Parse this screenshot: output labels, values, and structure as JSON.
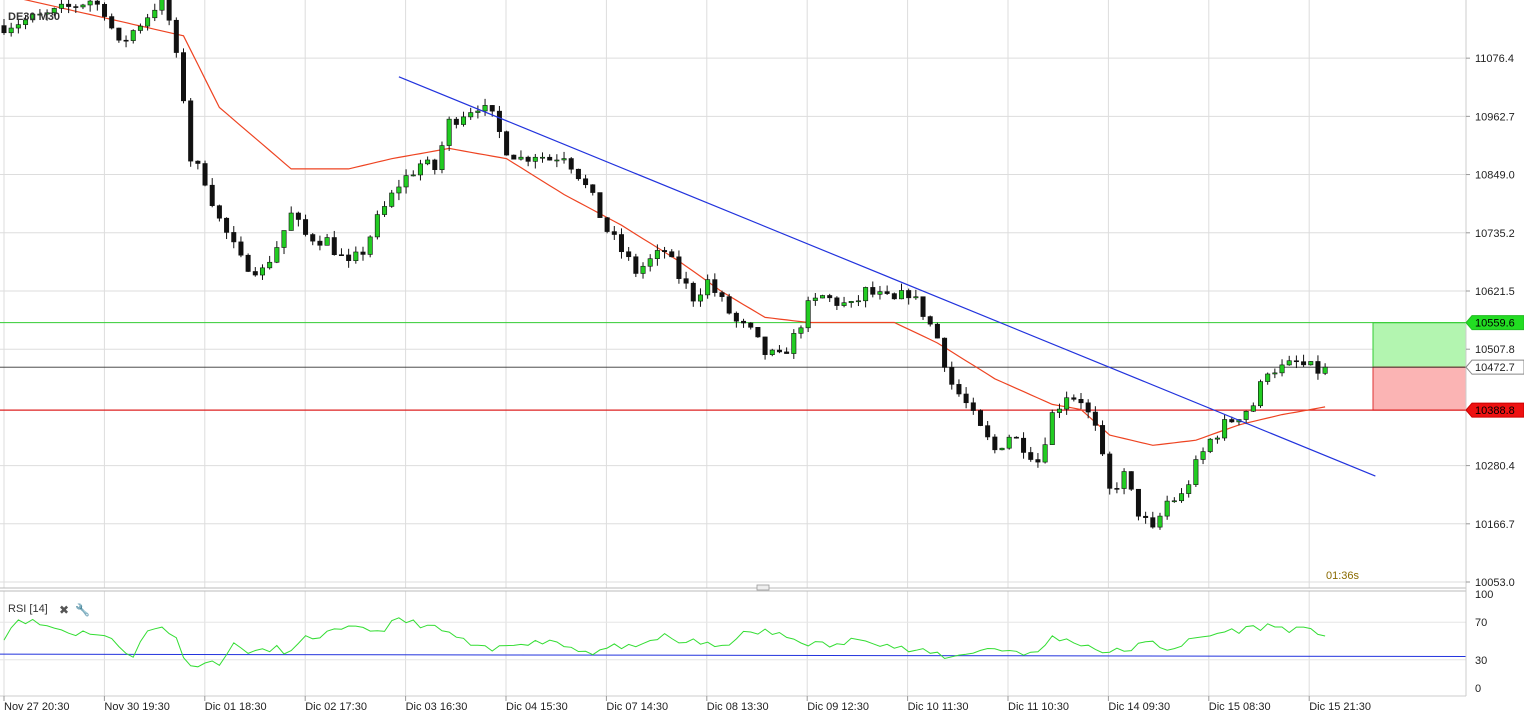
{
  "chart_data": {
    "type": "candlestick",
    "instrument": "DE30",
    "timeframe": "M30",
    "title": "DE30 M30",
    "y_ticks": [
      11076.4,
      10962.7,
      10849.0,
      10735.2,
      10621.5,
      10507.8,
      10280.4,
      10166.7,
      10053.0
    ],
    "ylim": [
      10053.0,
      11190.0
    ],
    "x_ticks": [
      "Nov 27 20:30",
      "Nov 30 19:30",
      "Dic 01 18:30",
      "Dic 02 17:30",
      "Dic 03 16:30",
      "Dic 04 15:30",
      "Dic 07 14:30",
      "Dic 08 13:30",
      "Dic 09 12:30",
      "Dic 10 11:30",
      "Dic 11 10:30",
      "Dic 14 09:30",
      "Dic 15 08:30",
      "Dic 15 21:30"
    ],
    "current_price": 10472.7,
    "take_profit": 10559.6,
    "stop_loss": 10388.8,
    "countdown": "01:36s",
    "grid": true,
    "close_path": [
      [
        0,
        11140
      ],
      [
        6,
        11160
      ],
      [
        12,
        11190
      ],
      [
        14,
        11170
      ],
      [
        16,
        11100
      ],
      [
        18,
        11130
      ],
      [
        20,
        11160
      ],
      [
        22,
        11195
      ],
      [
        23,
        11150
      ],
      [
        25,
        11000
      ],
      [
        26,
        10880
      ],
      [
        28,
        10840
      ],
      [
        30,
        10760
      ],
      [
        33,
        10680
      ],
      [
        36,
        10660
      ],
      [
        38,
        10710
      ],
      [
        40,
        10770
      ],
      [
        42,
        10730
      ],
      [
        45,
        10720
      ],
      [
        48,
        10670
      ],
      [
        50,
        10700
      ],
      [
        52,
        10760
      ],
      [
        55,
        10830
      ],
      [
        58,
        10870
      ],
      [
        60,
        10860
      ],
      [
        62,
        10950
      ],
      [
        64,
        10970
      ],
      [
        66,
        10985
      ],
      [
        68,
        10960
      ],
      [
        70,
        10900
      ],
      [
        72,
        10880
      ],
      [
        74,
        10890
      ],
      [
        76,
        10880
      ],
      [
        78,
        10890
      ],
      [
        80,
        10850
      ],
      [
        82,
        10800
      ],
      [
        84,
        10740
      ],
      [
        86,
        10700
      ],
      [
        88,
        10660
      ],
      [
        90,
        10680
      ],
      [
        92,
        10700
      ],
      [
        94,
        10650
      ],
      [
        96,
        10610
      ],
      [
        98,
        10640
      ],
      [
        100,
        10600
      ],
      [
        102,
        10560
      ],
      [
        104,
        10540
      ],
      [
        106,
        10500
      ],
      [
        108,
        10490
      ],
      [
        110,
        10530
      ],
      [
        112,
        10590
      ],
      [
        114,
        10610
      ],
      [
        116,
        10600
      ],
      [
        118,
        10590
      ],
      [
        120,
        10620
      ],
      [
        122,
        10610
      ],
      [
        124,
        10600
      ],
      [
        126,
        10620
      ],
      [
        128,
        10580
      ],
      [
        130,
        10530
      ],
      [
        132,
        10440
      ],
      [
        134,
        10400
      ],
      [
        136,
        10350
      ],
      [
        138,
        10310
      ],
      [
        140,
        10340
      ],
      [
        142,
        10320
      ],
      [
        144,
        10290
      ],
      [
        146,
        10380
      ],
      [
        148,
        10420
      ],
      [
        150,
        10410
      ],
      [
        152,
        10350
      ],
      [
        154,
        10230
      ],
      [
        156,
        10260
      ],
      [
        158,
        10190
      ],
      [
        160,
        10150
      ],
      [
        162,
        10210
      ],
      [
        164,
        10220
      ],
      [
        166,
        10280
      ],
      [
        168,
        10330
      ],
      [
        170,
        10360
      ],
      [
        172,
        10380
      ],
      [
        174,
        10400
      ],
      [
        176,
        10470
      ],
      [
        178,
        10470
      ],
      [
        180,
        10480
      ],
      [
        182,
        10470
      ],
      [
        184,
        10462
      ]
    ],
    "ma_points": [
      [
        0,
        11200
      ],
      [
        25,
        11120
      ],
      [
        30,
        10980
      ],
      [
        40,
        10860
      ],
      [
        48,
        10860
      ],
      [
        54,
        10880
      ],
      [
        62,
        10900
      ],
      [
        70,
        10880
      ],
      [
        78,
        10810
      ],
      [
        86,
        10750
      ],
      [
        94,
        10680
      ],
      [
        100,
        10620
      ],
      [
        106,
        10570
      ],
      [
        112,
        10560
      ],
      [
        118,
        10560
      ],
      [
        124,
        10560
      ],
      [
        130,
        10520
      ],
      [
        138,
        10450
      ],
      [
        146,
        10400
      ],
      [
        150,
        10390
      ],
      [
        154,
        10340
      ],
      [
        160,
        10320
      ],
      [
        166,
        10330
      ],
      [
        172,
        10360
      ],
      [
        178,
        10380
      ],
      [
        184,
        10395
      ]
    ],
    "trendline": [
      [
        55,
        11040
      ],
      [
        191,
        10260
      ]
    ],
    "rsi": {
      "label": "RSI [14]",
      "y_ticks": [
        100,
        70,
        30,
        0
      ],
      "ylim": [
        0,
        100
      ],
      "level": 35,
      "points": [
        [
          0,
          55
        ],
        [
          2,
          74
        ],
        [
          5,
          68
        ],
        [
          8,
          62
        ],
        [
          10,
          58
        ],
        [
          12,
          60
        ],
        [
          14,
          55
        ],
        [
          18,
          35
        ],
        [
          20,
          60
        ],
        [
          22,
          65
        ],
        [
          24,
          55
        ],
        [
          25,
          30
        ],
        [
          27,
          25
        ],
        [
          30,
          28
        ],
        [
          32,
          45
        ],
        [
          34,
          40
        ],
        [
          36,
          38
        ],
        [
          38,
          42
        ],
        [
          40,
          38
        ],
        [
          42,
          52
        ],
        [
          45,
          58
        ],
        [
          48,
          62
        ],
        [
          50,
          65
        ],
        [
          52,
          60
        ],
        [
          55,
          72
        ],
        [
          58,
          68
        ],
        [
          60,
          63
        ],
        [
          62,
          58
        ],
        [
          64,
          50
        ],
        [
          66,
          42
        ],
        [
          68,
          40
        ],
        [
          70,
          45
        ],
        [
          72,
          50
        ],
        [
          74,
          48
        ],
        [
          76,
          52
        ],
        [
          78,
          45
        ],
        [
          80,
          42
        ],
        [
          82,
          38
        ],
        [
          84,
          42
        ],
        [
          86,
          45
        ],
        [
          88,
          40
        ],
        [
          90,
          50
        ],
        [
          92,
          55
        ],
        [
          94,
          48
        ],
        [
          96,
          52
        ],
        [
          98,
          45
        ],
        [
          100,
          42
        ],
        [
          102,
          55
        ],
        [
          104,
          58
        ],
        [
          106,
          60
        ],
        [
          108,
          56
        ],
        [
          110,
          52
        ],
        [
          112,
          48
        ],
        [
          114,
          46
        ],
        [
          116,
          45
        ],
        [
          118,
          50
        ],
        [
          120,
          54
        ],
        [
          122,
          48
        ],
        [
          124,
          44
        ],
        [
          126,
          40
        ],
        [
          128,
          38
        ],
        [
          130,
          36
        ],
        [
          132,
          32
        ],
        [
          134,
          38
        ],
        [
          136,
          40
        ],
        [
          138,
          42
        ],
        [
          140,
          40
        ],
        [
          142,
          38
        ],
        [
          144,
          36
        ],
        [
          146,
          55
        ],
        [
          148,
          50
        ],
        [
          150,
          48
        ],
        [
          152,
          42
        ],
        [
          154,
          38
        ],
        [
          156,
          40
        ],
        [
          158,
          45
        ],
        [
          160,
          48
        ],
        [
          162,
          42
        ],
        [
          164,
          46
        ],
        [
          166,
          52
        ],
        [
          168,
          56
        ],
        [
          170,
          60
        ],
        [
          172,
          62
        ],
        [
          174,
          64
        ],
        [
          176,
          66
        ],
        [
          178,
          64
        ],
        [
          180,
          62
        ],
        [
          182,
          60
        ],
        [
          184,
          58
        ]
      ]
    }
  }
}
